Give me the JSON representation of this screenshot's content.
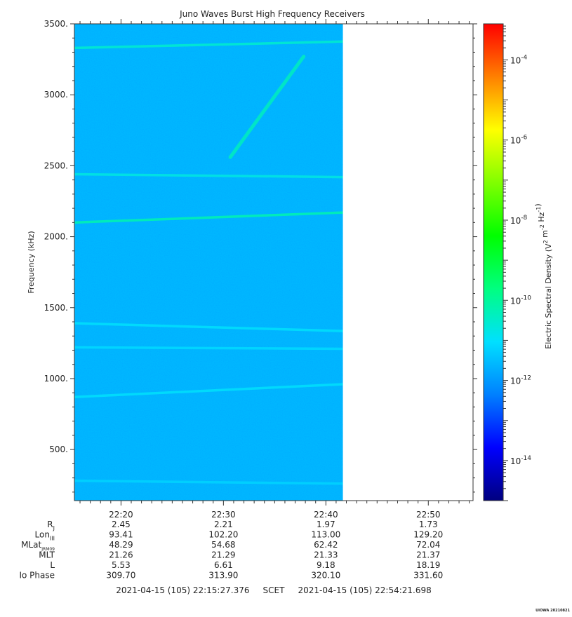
{
  "chart_data": {
    "type": "heatmap",
    "title": "Juno Waves Burst High Frequency Receivers",
    "ylabel": "Frequency (kHz)",
    "ylim": [
      140,
      3500
    ],
    "y_ticks": [
      "3500.",
      "3000.",
      "2500.",
      "2000.",
      "1500.",
      "1000.",
      "500."
    ],
    "y_tick_values": [
      3500,
      3000,
      2500,
      2000,
      1500,
      1000,
      500
    ],
    "time_axis": {
      "start": "22:15:27",
      "end": "22:54:22",
      "data_end": "22:41:40",
      "tick_labels": [
        "22:20",
        "22:30",
        "22:40",
        "22:50"
      ],
      "tick_minutes": [
        20,
        30,
        40,
        50
      ]
    },
    "colorbar": {
      "label": "Electric Spectral Density (V² m⁻² Hz⁻¹)",
      "scale": "log",
      "range_exp": [
        -15.0,
        -3.1
      ],
      "tick_exponents": [
        -4,
        -6,
        -8,
        -10,
        -12,
        -14
      ],
      "tick_labels": [
        "10-4",
        "10-6",
        "10-8",
        "10-10",
        "10-12",
        "10-14"
      ],
      "colors": [
        "#00007f",
        "#0000ff",
        "#0080ff",
        "#00e0ff",
        "#00ff80",
        "#00ff00",
        "#80ff00",
        "#ffff00",
        "#ff8000",
        "#ff0000"
      ]
    },
    "background_level_exp": -11.6,
    "features": [
      {
        "kind": "line",
        "freq_start": 3330,
        "freq_end": 3375,
        "level_exp": -10.5
      },
      {
        "kind": "line",
        "freq_start": 2440,
        "freq_end": 2420,
        "level_exp": -10.7
      },
      {
        "kind": "line",
        "freq_start": 2100,
        "freq_end": 2170,
        "level_exp": -10.2
      },
      {
        "kind": "line",
        "freq_start": 1390,
        "freq_end": 1335,
        "level_exp": -11.0
      },
      {
        "kind": "line",
        "freq_start": 1220,
        "freq_end": 1210,
        "level_exp": -11.1
      },
      {
        "kind": "line",
        "freq_start": 870,
        "freq_end": 960,
        "level_exp": -11.0
      },
      {
        "kind": "line",
        "freq_start": 280,
        "freq_end": 260,
        "level_exp": -11.2
      },
      {
        "kind": "drift",
        "t0": "22:30:40",
        "f0": 2560,
        "t1": "22:37:50",
        "f1": 3270,
        "level_exp": -10.3
      }
    ]
  },
  "ephemeris": {
    "rows": [
      {
        "label": "R",
        "sub": "J",
        "values": [
          "2.45",
          "2.21",
          "1.97",
          "1.73"
        ]
      },
      {
        "label": "Lon",
        "sub": "III",
        "values": [
          "93.41",
          "102.20",
          "113.00",
          "129.20"
        ]
      },
      {
        "label": "MLat",
        "sub": "JRM09",
        "values": [
          "48.29",
          "54.68",
          "62.42",
          "72.04"
        ]
      },
      {
        "label": "MLT",
        "sub": "",
        "values": [
          "21.26",
          "21.29",
          "21.33",
          "21.37"
        ]
      },
      {
        "label": "L",
        "sub": "",
        "values": [
          "5.53",
          "6.61",
          "9.18",
          "18.19"
        ]
      },
      {
        "label": "Io Phase",
        "sub": "",
        "values": [
          "309.70",
          "313.90",
          "320.10",
          "331.60"
        ]
      }
    ]
  },
  "footer": {
    "range_text": "2021-04-15 (105) 22:15:27.376     SCET     2021-04-15 (105) 22:54:21.698",
    "stamp": "UIOWA 20210821"
  }
}
